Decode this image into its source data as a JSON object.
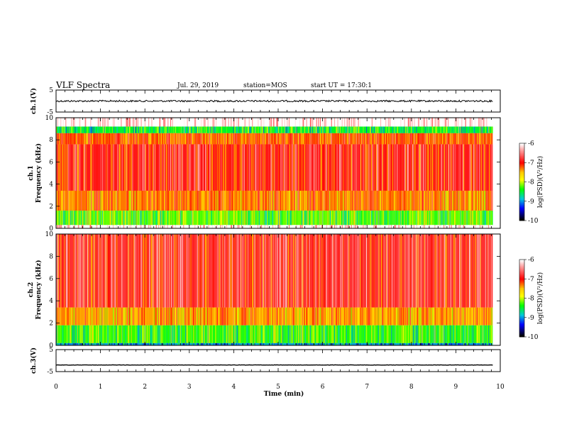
{
  "header": {
    "title": "VLF Spectra",
    "date": "Jul. 29, 2019",
    "station": "station=MOS",
    "start": "start UT = 17:30:1"
  },
  "chart_data": {
    "type": "heatmap",
    "x_axis": {
      "label": "Time (min)",
      "range": [
        0,
        10
      ],
      "ticks": [
        "0",
        "1",
        "2",
        "3",
        "4",
        "5",
        "6",
        "7",
        "8",
        "9",
        "10"
      ]
    },
    "panels": [
      {
        "id": "ch1-waveform",
        "type": "line",
        "ylabel": "ch.1(V)",
        "ylim": [
          -5,
          5
        ],
        "yticks": [
          "5",
          "-5"
        ],
        "level": 0.0
      },
      {
        "id": "ch1-spectrogram",
        "type": "heatmap",
        "ylabel_top": "ch.1",
        "ylabel": "Frequency (kHz)",
        "ylim": [
          0,
          10
        ],
        "yticks": [
          "0",
          "2",
          "4",
          "6",
          "8",
          "10"
        ],
        "colorbar": {
          "label": "log(PSD)(V²/Hz)",
          "range": [
            -10,
            -6
          ],
          "ticks": [
            "-6",
            "-7",
            "-8",
            "-9",
            "-10"
          ]
        },
        "bands": [
          {
            "f": [
              9.2,
              10.0
            ],
            "log_psd": -6.0
          },
          {
            "f": [
              8.6,
              9.2
            ],
            "log_psd": -8.5
          },
          {
            "f": [
              7.6,
              8.6
            ],
            "log_psd": -7.2
          },
          {
            "f": [
              3.4,
              7.6
            ],
            "log_psd": -6.9
          },
          {
            "f": [
              1.6,
              3.4
            ],
            "log_psd": -7.3
          },
          {
            "f": [
              0.3,
              1.6
            ],
            "log_psd": -8.2
          },
          {
            "f": [
              0.0,
              0.3
            ],
            "log_psd": -6.0
          }
        ]
      },
      {
        "id": "ch2-spectrogram",
        "type": "heatmap",
        "ylabel_top": "ch.2",
        "ylabel": "Frequency (kHz)",
        "ylim": [
          0,
          10
        ],
        "yticks": [
          "0",
          "2",
          "4",
          "6",
          "8",
          "10"
        ],
        "colorbar": {
          "label": "log(PSD)(V²/Hz)",
          "range": [
            -10,
            -6
          ],
          "ticks": [
            "-6",
            "-7",
            "-8",
            "-9",
            "-10"
          ]
        },
        "bands": [
          {
            "f": [
              3.4,
              10.0
            ],
            "log_psd": -6.8
          },
          {
            "f": [
              1.8,
              3.4
            ],
            "log_psd": -7.4
          },
          {
            "f": [
              0.2,
              1.8
            ],
            "log_psd": -8.3
          },
          {
            "f": [
              0.0,
              0.2
            ],
            "log_psd": -9.0
          }
        ]
      },
      {
        "id": "ch3-waveform",
        "type": "line",
        "ylabel": "ch.3(V)",
        "ylim": [
          -5,
          5
        ],
        "yticks": [
          "5",
          "-5"
        ],
        "level": -2.0
      }
    ]
  },
  "colors": {
    "black": "#000000",
    "colormap": [
      "#ffffff",
      "#ff0000",
      "#ffd000",
      "#ffff00",
      "#00ff00",
      "#00cccc",
      "#0000ff",
      "#000000"
    ]
  }
}
